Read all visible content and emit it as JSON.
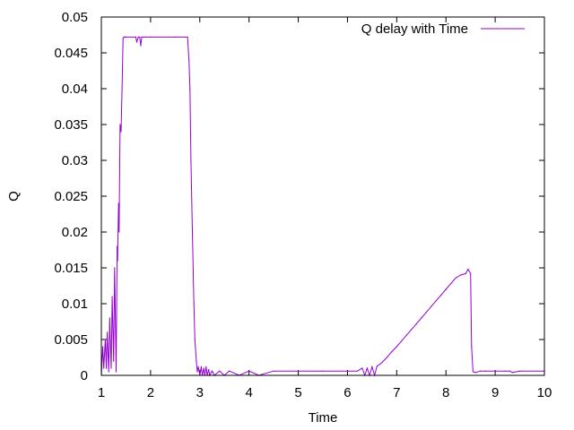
{
  "chart_data": {
    "type": "line",
    "title": "",
    "xlabel": "Time",
    "ylabel": "Q",
    "xlim": [
      1,
      10
    ],
    "ylim": [
      0,
      0.05
    ],
    "x_ticks": [
      "1",
      "2",
      "3",
      "4",
      "5",
      "6",
      "7",
      "8",
      "9",
      "10"
    ],
    "y_ticks": [
      "0",
      "0.005",
      "0.01",
      "0.015",
      "0.02",
      "0.025",
      "0.03",
      "0.035",
      "0.04",
      "0.045",
      "0.05"
    ],
    "grid": false,
    "legend_position": "top-right",
    "series": [
      {
        "name": "Q delay with Time",
        "color": "#9400d3",
        "x": [
          1.0,
          1.03,
          1.05,
          1.08,
          1.1,
          1.12,
          1.15,
          1.17,
          1.2,
          1.22,
          1.25,
          1.27,
          1.3,
          1.32,
          1.33,
          1.35,
          1.36,
          1.38,
          1.4,
          1.42,
          1.44,
          1.46,
          1.48,
          1.5,
          1.7,
          1.72,
          1.75,
          1.78,
          1.8,
          1.82,
          1.85,
          1.9,
          2.0,
          2.5,
          2.75,
          2.78,
          2.8,
          2.82,
          2.85,
          2.88,
          2.9,
          2.93,
          2.95,
          2.97,
          3.0,
          3.03,
          3.05,
          3.08,
          3.1,
          3.13,
          3.15,
          3.18,
          3.2,
          3.25,
          3.3,
          3.4,
          3.5,
          3.6,
          3.8,
          4.0,
          4.2,
          4.5,
          5.0,
          5.5,
          6.0,
          6.2,
          6.3,
          6.35,
          6.4,
          6.45,
          6.5,
          6.55,
          6.6,
          6.65,
          6.7,
          6.8,
          6.9,
          7.0,
          7.1,
          7.2,
          7.3,
          7.4,
          7.5,
          7.6,
          7.7,
          7.8,
          7.9,
          8.0,
          8.1,
          8.2,
          8.3,
          8.4,
          8.45,
          8.5,
          8.52,
          8.55,
          8.6,
          8.7,
          8.8,
          9.0,
          9.2,
          9.3,
          9.35,
          9.5,
          10.0
        ],
        "y": [
          0.0,
          0.004,
          0.001,
          0.005,
          0.001,
          0.006,
          0.0005,
          0.008,
          0.001,
          0.011,
          0.002,
          0.015,
          0.0005,
          0.018,
          0.016,
          0.024,
          0.02,
          0.035,
          0.034,
          0.04,
          0.047,
          0.0472,
          0.0472,
          0.0472,
          0.0472,
          0.0465,
          0.0472,
          0.0472,
          0.046,
          0.0472,
          0.0472,
          0.0472,
          0.0472,
          0.0472,
          0.0472,
          0.044,
          0.04,
          0.03,
          0.02,
          0.01,
          0.005,
          0.002,
          0.0005,
          0.0012,
          0.0,
          0.0012,
          0.0,
          0.001,
          0.0,
          0.0012,
          0.0,
          0.0008,
          0.0,
          0.0006,
          0.0,
          0.0006,
          0.0,
          0.0006,
          0.0,
          0.0006,
          0.0,
          0.0006,
          0.0006,
          0.0006,
          0.0006,
          0.0006,
          0.001,
          0.0,
          0.001,
          0.0,
          0.0012,
          0.0,
          0.0013,
          0.0015,
          0.0018,
          0.0025,
          0.0033,
          0.004,
          0.0048,
          0.0056,
          0.0064,
          0.0072,
          0.008,
          0.0088,
          0.0096,
          0.0104,
          0.0112,
          0.012,
          0.0128,
          0.0136,
          0.014,
          0.0142,
          0.0148,
          0.0142,
          0.004,
          0.0005,
          0.0004,
          0.0006,
          0.0006,
          0.0006,
          0.0006,
          0.0006,
          0.0004,
          0.0006,
          0.0006
        ]
      }
    ]
  }
}
